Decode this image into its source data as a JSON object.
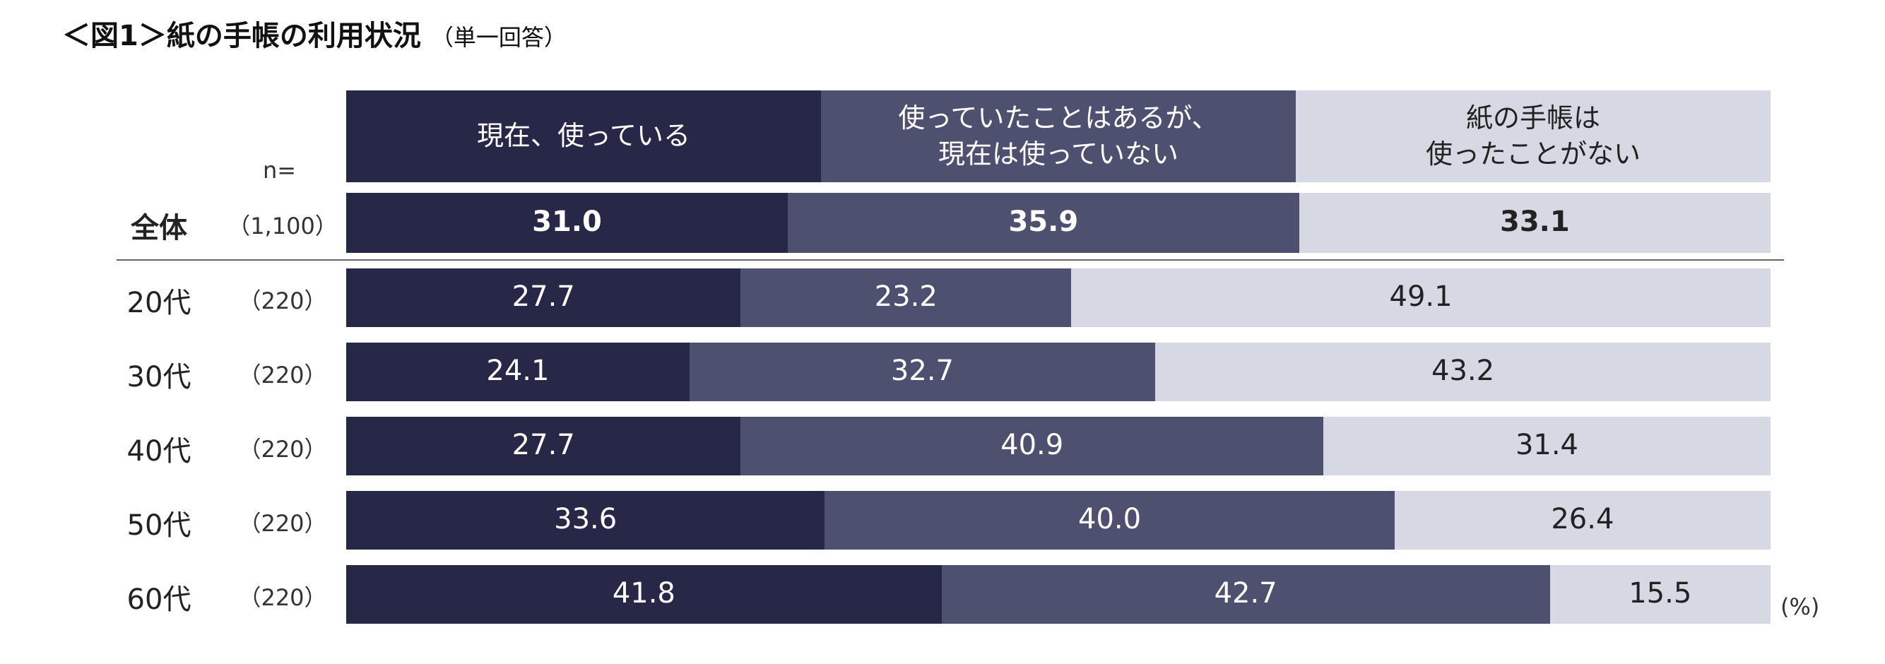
{
  "title": {
    "main": "＜図1＞紙の手帳の利用状況",
    "sub": "（単一回答）"
  },
  "n_label": "n=",
  "unit_label": "(%)",
  "colors": {
    "used_now": "#272847",
    "used_before": "#4e5070",
    "never": "#d6d8e3",
    "text_dark": "#222222",
    "text_light": "#ffffff"
  },
  "chart_data": {
    "type": "bar",
    "orientation": "horizontal",
    "stacked": true,
    "categories": [
      "全体",
      "20代",
      "30代",
      "40代",
      "50代",
      "60代"
    ],
    "n": [
      "（1,100）",
      "（220）",
      "（220）",
      "（220）",
      "（220）",
      "（220）"
    ],
    "series": [
      {
        "name": "現在、使っている",
        "values": [
          31.0,
          27.7,
          24.1,
          27.7,
          33.6,
          41.8
        ]
      },
      {
        "name": "使っていたことはあるが、\n現在は使っていない",
        "values": [
          35.9,
          23.2,
          32.7,
          40.9,
          40.0,
          42.7
        ]
      },
      {
        "name": "紙の手帳は\n使ったことがない",
        "values": [
          33.1,
          49.1,
          43.2,
          31.4,
          26.4,
          15.5
        ]
      }
    ],
    "value_labels": [
      [
        "31.0",
        "35.9",
        "33.1"
      ],
      [
        "27.7",
        "23.2",
        "49.1"
      ],
      [
        "24.1",
        "32.7",
        "43.2"
      ],
      [
        "27.7",
        "40.9",
        "31.4"
      ],
      [
        "33.6",
        "40.0",
        "26.4"
      ],
      [
        "41.8",
        "42.7",
        "15.5"
      ]
    ],
    "xlim": [
      0,
      100
    ],
    "unit": "(%)",
    "legend": "top"
  }
}
